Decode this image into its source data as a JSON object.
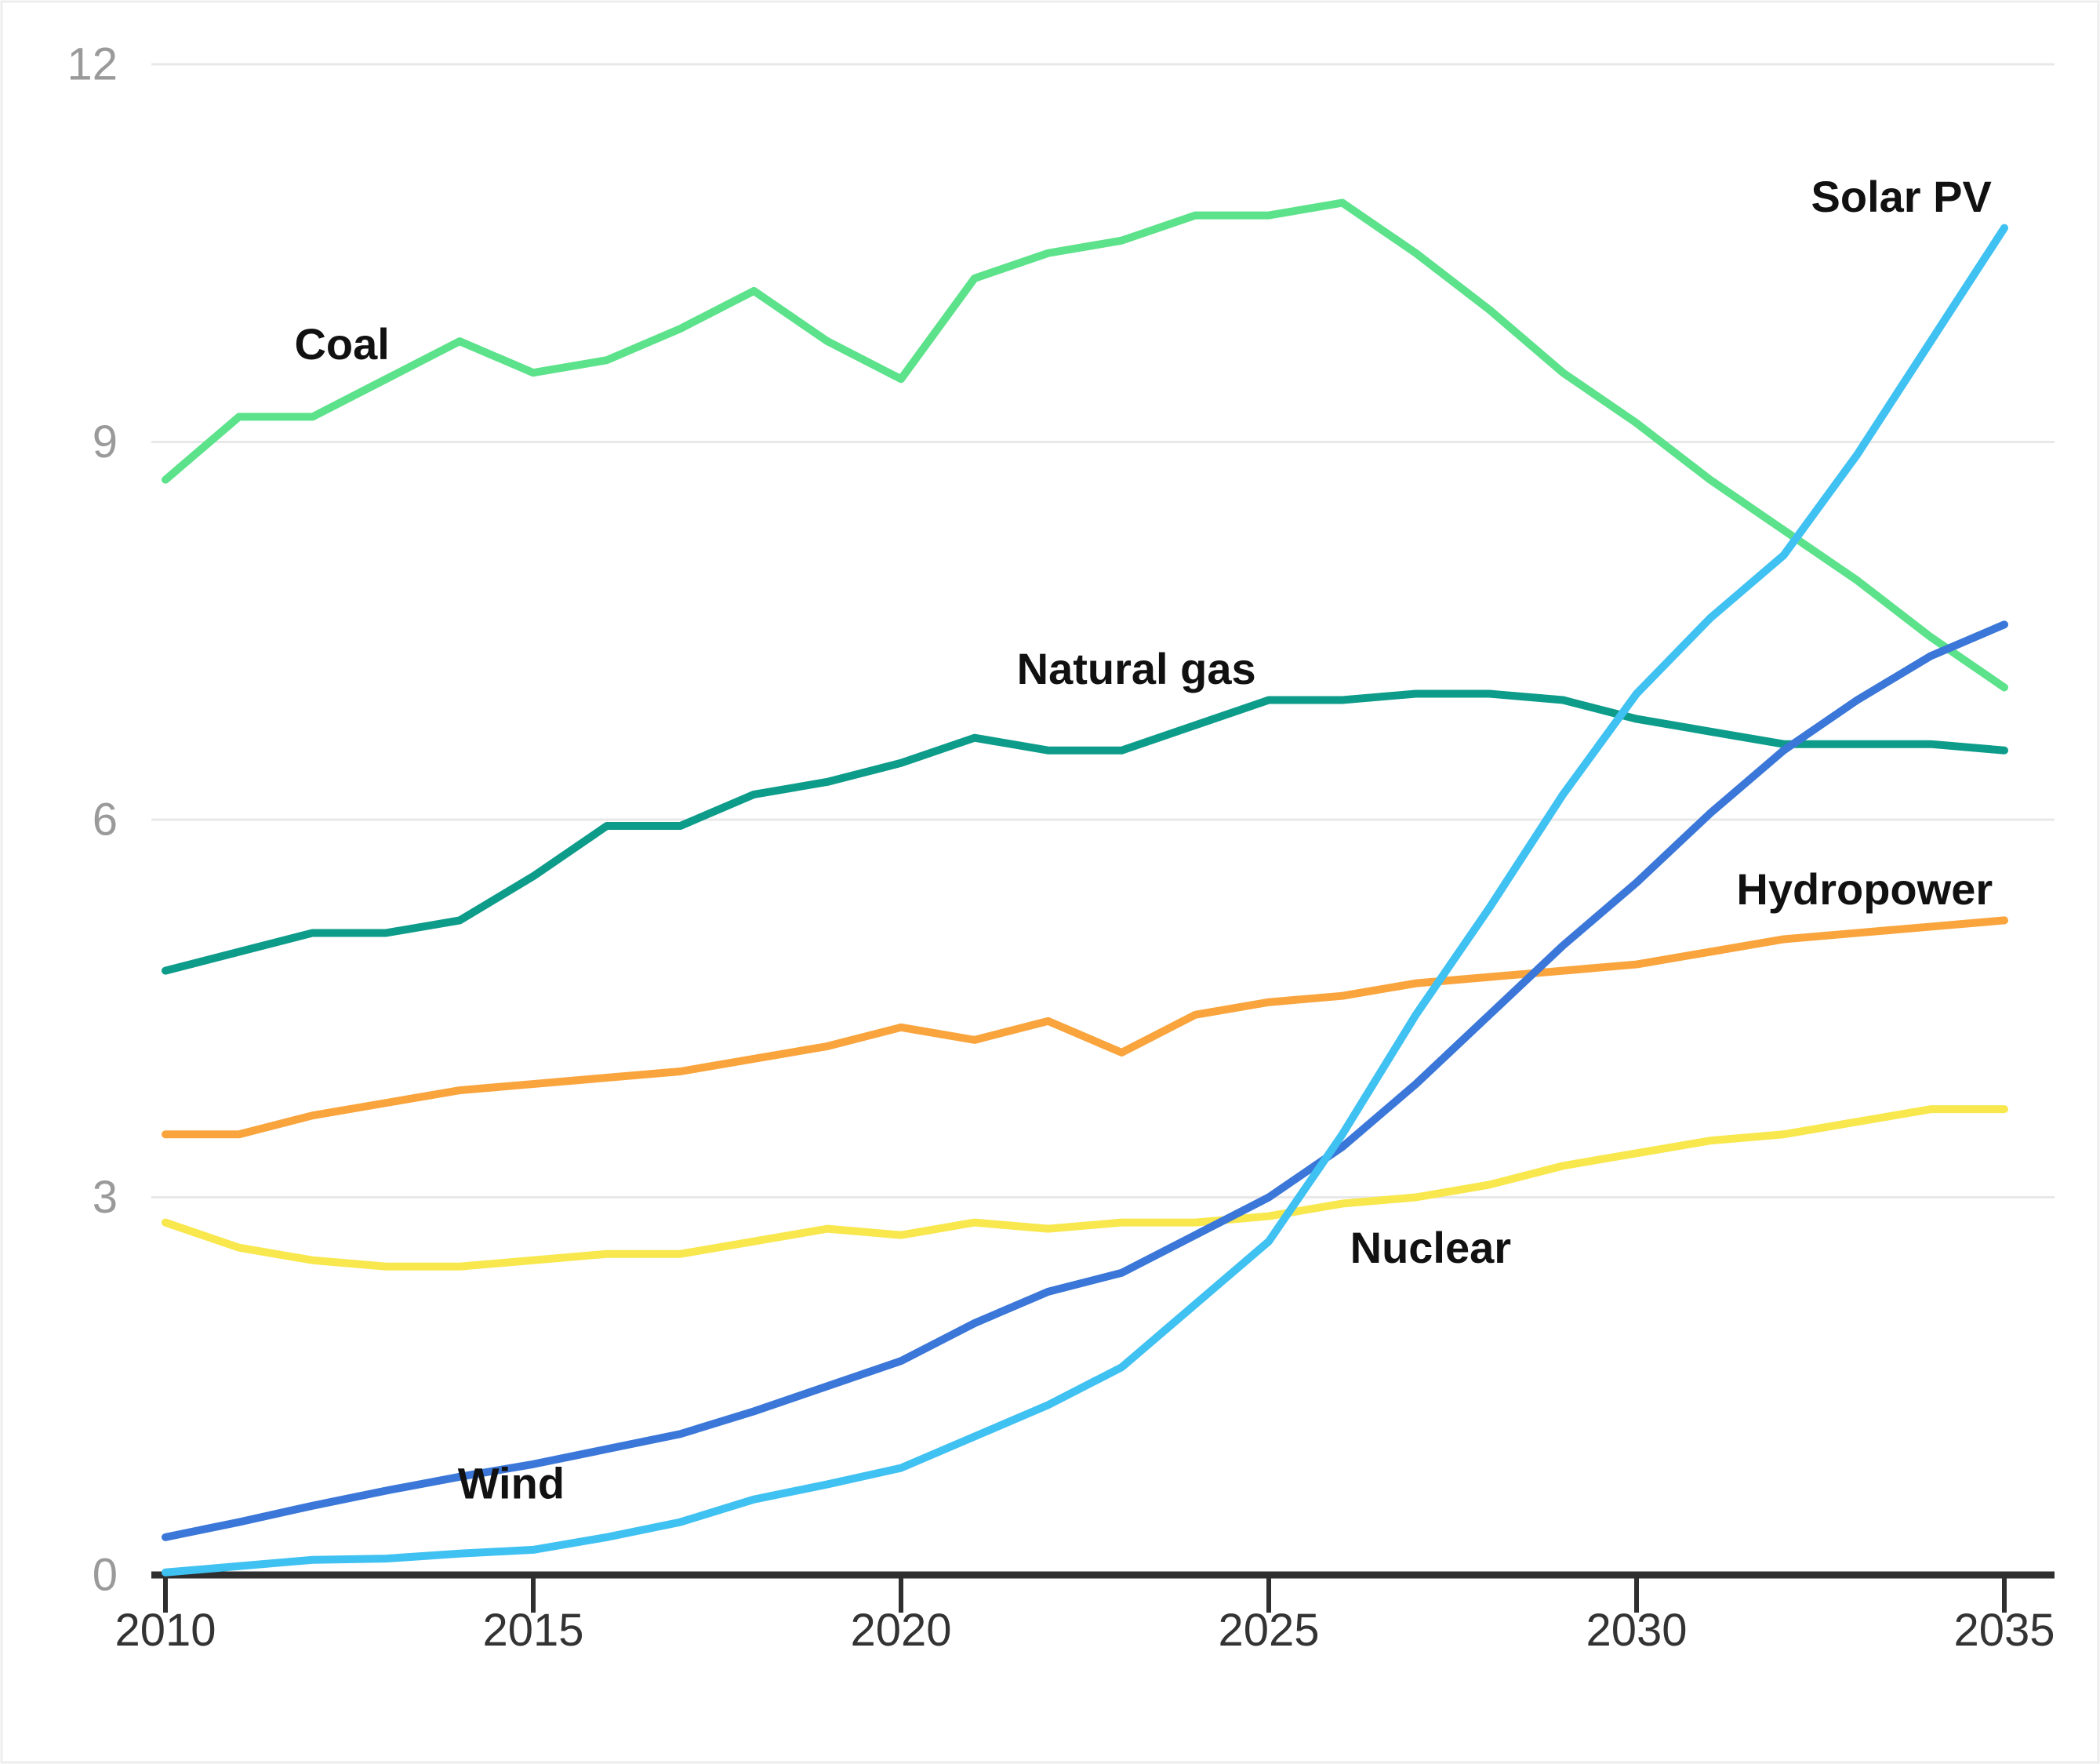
{
  "chart_data": {
    "type": "line",
    "title": "",
    "xlabel": "",
    "ylabel": "",
    "xlim": [
      2010,
      2035
    ],
    "ylim": [
      0,
      12
    ],
    "x_ticks": [
      2010,
      2015,
      2020,
      2025,
      2030,
      2035
    ],
    "y_ticks": [
      0,
      3,
      6,
      9,
      12
    ],
    "grid": true,
    "legend_position": "inline-labels",
    "x": [
      2010,
      2011,
      2012,
      2013,
      2014,
      2015,
      2016,
      2017,
      2018,
      2019,
      2020,
      2021,
      2022,
      2023,
      2024,
      2025,
      2026,
      2027,
      2028,
      2029,
      2030,
      2031,
      2032,
      2033,
      2034,
      2035
    ],
    "series": [
      {
        "name": "Coal",
        "color": "#5ce28a",
        "values": [
          8.7,
          9.2,
          9.2,
          9.5,
          9.8,
          9.55,
          9.65,
          9.9,
          10.2,
          9.8,
          9.5,
          10.3,
          10.5,
          10.6,
          10.8,
          10.8,
          10.9,
          10.5,
          10.05,
          9.55,
          9.15,
          8.7,
          8.3,
          7.9,
          7.45,
          7.05
        ]
      },
      {
        "name": "Natural gas",
        "color": "#0d9c8a",
        "values": [
          4.8,
          4.95,
          5.1,
          5.1,
          5.2,
          5.55,
          5.95,
          5.95,
          6.2,
          6.3,
          6.45,
          6.65,
          6.55,
          6.55,
          6.75,
          6.95,
          6.95,
          7.0,
          7.0,
          6.95,
          6.8,
          6.7,
          6.6,
          6.6,
          6.6,
          6.55
        ]
      },
      {
        "name": "Hydropower",
        "color": "#f9a43c",
        "values": [
          3.5,
          3.5,
          3.65,
          3.75,
          3.85,
          3.9,
          3.95,
          4.0,
          4.1,
          4.2,
          4.35,
          4.25,
          4.4,
          4.15,
          4.45,
          4.55,
          4.6,
          4.7,
          4.75,
          4.8,
          4.85,
          4.95,
          5.05,
          5.1,
          5.15,
          5.2
        ]
      },
      {
        "name": "Nuclear",
        "color": "#f8e74d",
        "values": [
          2.8,
          2.6,
          2.5,
          2.45,
          2.45,
          2.5,
          2.55,
          2.55,
          2.65,
          2.75,
          2.7,
          2.8,
          2.75,
          2.8,
          2.8,
          2.85,
          2.95,
          3.0,
          3.1,
          3.25,
          3.35,
          3.45,
          3.5,
          3.6,
          3.7,
          3.7
        ]
      },
      {
        "name": "Wind",
        "color": "#3b77d8",
        "values": [
          0.3,
          0.42,
          0.55,
          0.67,
          0.78,
          0.88,
          1.0,
          1.12,
          1.3,
          1.5,
          1.7,
          2.0,
          2.25,
          2.4,
          2.7,
          3.0,
          3.4,
          3.9,
          4.45,
          5.0,
          5.5,
          6.05,
          6.55,
          6.95,
          7.3,
          7.55
        ]
      },
      {
        "name": "Solar PV",
        "color": "#3fc1f2",
        "values": [
          0.02,
          0.07,
          0.12,
          0.13,
          0.17,
          0.2,
          0.3,
          0.42,
          0.6,
          0.72,
          0.85,
          1.1,
          1.35,
          1.65,
          2.15,
          2.65,
          3.5,
          4.45,
          5.3,
          6.2,
          7.0,
          7.6,
          8.1,
          8.9,
          9.8,
          10.7
        ]
      }
    ],
    "labels": [
      {
        "text": "Coal",
        "year": 2012.4,
        "value": 9.78
      },
      {
        "text": "Natural gas",
        "year": 2023.2,
        "value": 7.2
      },
      {
        "text": "Solar PV",
        "year": 2033.6,
        "value": 10.95
      },
      {
        "text": "Hydropower",
        "year": 2033.1,
        "value": 5.45
      },
      {
        "text": "Nuclear",
        "year": 2027.2,
        "value": 2.6
      },
      {
        "text": "Wind",
        "year": 2014.7,
        "value": 0.73
      }
    ],
    "y_tick_labels": [
      "0",
      "3",
      "6",
      "9",
      "12"
    ],
    "x_tick_labels": [
      "2010",
      "2015",
      "2020",
      "2025",
      "2030",
      "2035"
    ]
  },
  "colors": {
    "background": "#ffffff",
    "border": "#ededed",
    "grid": "#e8e8e8",
    "axis": "#2f2f2f",
    "y_tick_text": "#9a9a9a",
    "x_tick_text": "#333333",
    "series_label_text": "#111111"
  }
}
